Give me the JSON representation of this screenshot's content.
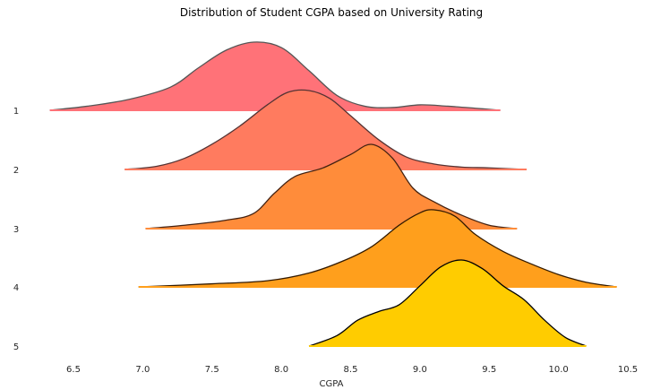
{
  "chart_data": {
    "type": "ridgeline",
    "title": "Distribution of Student CGPA based on University Rating",
    "xlabel": "CGPA",
    "ylabel": "",
    "xlim": [
      6.2,
      10.5
    ],
    "x_ticks": [
      "6.5",
      "7.0",
      "7.5",
      "8.0",
      "8.5",
      "9.0",
      "9.5",
      "10.0",
      "10.5"
    ],
    "grid": false,
    "series": [
      {
        "name": "1",
        "color": "#ff7278",
        "edge": "#555555",
        "x": [
          6.33,
          6.6,
          6.9,
          7.2,
          7.4,
          7.6,
          7.8,
          8.0,
          8.2,
          8.4,
          8.6,
          8.8,
          9.0,
          9.2,
          9.4,
          9.58
        ],
        "density": [
          0.0,
          0.06,
          0.16,
          0.34,
          0.62,
          0.88,
          1.0,
          0.92,
          0.58,
          0.22,
          0.06,
          0.04,
          0.08,
          0.06,
          0.03,
          0.0
        ]
      },
      {
        "name": "2",
        "color": "#ff7b5f",
        "edge": "#553333",
        "x": [
          6.87,
          7.1,
          7.3,
          7.5,
          7.7,
          7.9,
          8.05,
          8.2,
          8.35,
          8.5,
          8.7,
          8.9,
          9.1,
          9.3,
          9.5,
          9.77
        ],
        "density": [
          0.0,
          0.04,
          0.14,
          0.32,
          0.55,
          0.82,
          0.98,
          1.0,
          0.9,
          0.68,
          0.38,
          0.16,
          0.07,
          0.03,
          0.02,
          0.0
        ]
      },
      {
        "name": "3",
        "color": "#ff8c3a",
        "edge": "#442211",
        "x": [
          7.02,
          7.3,
          7.6,
          7.8,
          7.95,
          8.1,
          8.3,
          8.5,
          8.65,
          8.8,
          8.95,
          9.1,
          9.3,
          9.5,
          9.7
        ],
        "density": [
          0.0,
          0.04,
          0.1,
          0.18,
          0.42,
          0.62,
          0.72,
          0.88,
          1.0,
          0.84,
          0.48,
          0.32,
          0.16,
          0.04,
          0.0
        ]
      },
      {
        "name": "4",
        "color": "#ff9f1c",
        "edge": "#331a00",
        "x": [
          6.97,
          7.5,
          7.9,
          8.2,
          8.45,
          8.65,
          8.85,
          9.0,
          9.1,
          9.25,
          9.4,
          9.6,
          9.8,
          10.0,
          10.2,
          10.42
        ],
        "density": [
          0.0,
          0.04,
          0.08,
          0.18,
          0.34,
          0.52,
          0.8,
          0.96,
          1.0,
          0.92,
          0.68,
          0.46,
          0.3,
          0.16,
          0.06,
          0.0
        ]
      },
      {
        "name": "5",
        "color": "#ffcc00",
        "edge": "#000000",
        "x": [
          8.2,
          8.4,
          8.55,
          8.7,
          8.85,
          9.0,
          9.15,
          9.3,
          9.45,
          9.6,
          9.75,
          9.9,
          10.05,
          10.2
        ],
        "density": [
          0.0,
          0.12,
          0.3,
          0.4,
          0.48,
          0.7,
          0.92,
          1.0,
          0.9,
          0.7,
          0.54,
          0.3,
          0.1,
          0.0
        ]
      }
    ]
  }
}
